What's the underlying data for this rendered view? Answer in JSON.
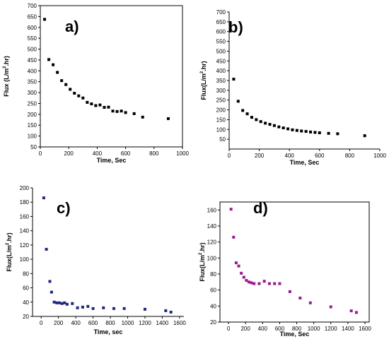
{
  "chart_data": [
    {
      "type": "scatter",
      "panel_label": "a)",
      "xlabel": "Time, Sec",
      "ylabel": "Flux (L/m²·hr)",
      "ylabel_base": "Flux (L/m",
      "ylabel_sup": "2",
      "ylabel_tail": ".hr)",
      "xlim": [
        0,
        1000
      ],
      "ylim": [
        50,
        700
      ],
      "xticks": [
        "0",
        "200",
        "400",
        "600",
        "800",
        "1000"
      ],
      "yticks": [
        "50",
        "100",
        "150",
        "200",
        "250",
        "300",
        "350",
        "400",
        "450",
        "500",
        "550",
        "600",
        "650",
        "700"
      ],
      "marker_color": "#000000",
      "series": [
        {
          "x": [
            30,
            60,
            90,
            120,
            150,
            180,
            210,
            240,
            270,
            300,
            330,
            360,
            390,
            420,
            450,
            480,
            510,
            540,
            570,
            600,
            660,
            720,
            900
          ],
          "y": [
            637,
            452,
            428,
            393,
            355,
            337,
            315,
            297,
            285,
            275,
            255,
            248,
            240,
            243,
            232,
            233,
            215,
            213,
            215,
            208,
            203,
            187,
            180
          ]
        }
      ]
    },
    {
      "type": "scatter",
      "panel_label": "b)",
      "xlabel": "Time, Sec",
      "ylabel": "Flux(L/m²·hr)",
      "ylabel_base": "Flux(L/m",
      "ylabel_sup": "2",
      "ylabel_tail": ".hr)",
      "xlim": [
        0,
        1000
      ],
      "ylim": [
        0,
        700
      ],
      "xticks": [
        "0",
        "200",
        "400",
        "600",
        "800",
        "1000"
      ],
      "yticks": [
        "50",
        "100",
        "150",
        "200",
        "250",
        "300",
        "350",
        "400",
        "450",
        "500",
        "550",
        "600",
        "650",
        "700"
      ],
      "marker_color": "#000000",
      "series": [
        {
          "x": [
            30,
            60,
            90,
            120,
            150,
            180,
            210,
            240,
            270,
            300,
            330,
            360,
            390,
            420,
            450,
            480,
            510,
            540,
            570,
            600,
            660,
            720,
            900
          ],
          "y": [
            357,
            244,
            197,
            180,
            162,
            150,
            140,
            132,
            126,
            120,
            113,
            108,
            103,
            98,
            95,
            92,
            90,
            87,
            85,
            83,
            80,
            78,
            68
          ]
        }
      ]
    },
    {
      "type": "scatter",
      "panel_label": "c)",
      "xlabel": "Time, sec",
      "ylabel": "Flux(L/m²·hr)",
      "ylabel_base": "Flux(L/m",
      "ylabel_sup": "2",
      "ylabel_tail": ".hr)",
      "xlim": [
        -100,
        1650
      ],
      "ylim": [
        20,
        200
      ],
      "xticks": [
        "0",
        "200",
        "400",
        "600",
        "800",
        "1000",
        "1200",
        "1400",
        "1600"
      ],
      "yticks": [
        "20",
        "40",
        "60",
        "80",
        "100",
        "120",
        "140",
        "160",
        "180",
        "200"
      ],
      "marker_color": "#1f2a80",
      "series": [
        {
          "x": [
            30,
            60,
            100,
            120,
            150,
            180,
            210,
            240,
            270,
            300,
            360,
            420,
            480,
            540,
            600,
            720,
            840,
            960,
            1200,
            1440,
            1500
          ],
          "y": [
            186,
            114,
            69,
            54,
            40,
            39,
            39,
            38,
            39,
            37,
            38,
            32,
            33,
            34,
            31,
            32,
            31,
            31,
            30,
            28,
            26
          ]
        }
      ]
    },
    {
      "type": "scatter",
      "panel_label": "d)",
      "xlabel": "Time, Sec",
      "ylabel": "Flux(L/m²·hr)",
      "ylabel_base": "Flux(L/m",
      "ylabel_sup": "2",
      "ylabel_tail": ".hr)",
      "xlim": [
        -100,
        1650
      ],
      "ylim": [
        20,
        170
      ],
      "xticks": [
        "0",
        "200",
        "400",
        "600",
        "800",
        "1000",
        "1200",
        "1400",
        "1600"
      ],
      "yticks": [
        "20",
        "40",
        "60",
        "80",
        "100",
        "120",
        "140",
        "160"
      ],
      "marker_color": "#9b1a8e",
      "series": [
        {
          "x": [
            30,
            60,
            90,
            120,
            150,
            180,
            210,
            240,
            270,
            300,
            360,
            420,
            480,
            540,
            600,
            720,
            840,
            960,
            1200,
            1440,
            1500
          ],
          "y": [
            161,
            126,
            94,
            90,
            81,
            76,
            72,
            70,
            69,
            68,
            68,
            71,
            68,
            68,
            68,
            58,
            50,
            44,
            39,
            34,
            32
          ]
        }
      ]
    }
  ]
}
